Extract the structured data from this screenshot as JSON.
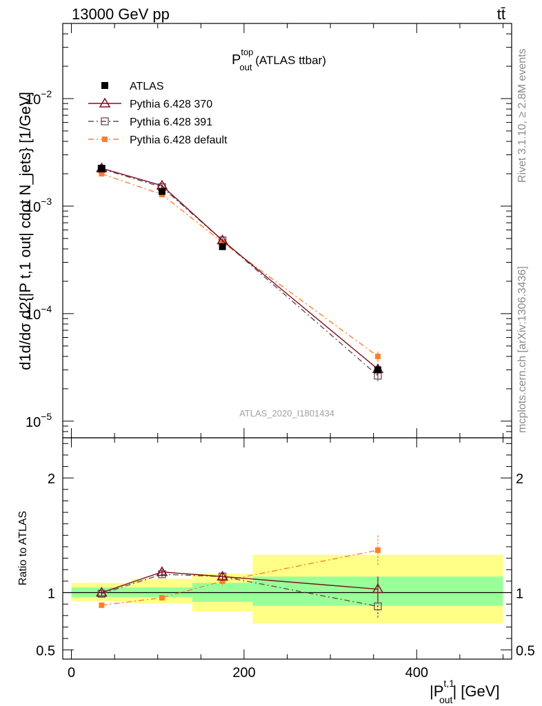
{
  "header": {
    "energy": "13000 GeV pp",
    "process": "tt̄"
  },
  "side_labels": {
    "rivet": "Rivet 3.1.10, ≥ 2.8M events",
    "mcplots": "mcplots.cern.ch [arXiv:1306.3436]"
  },
  "colors": {
    "atlas": "#000000",
    "p370": "#7a1020",
    "p391": "#6b4a5a",
    "pdefault": "#ff7f27",
    "band_outer": "#ffff88",
    "band_inner": "#99ff99"
  },
  "chart_data": [
    {
      "type": "scatter",
      "title_main": "P",
      "title_sup": "top",
      "title_sub": "out",
      "title_rest": " (ATLAS ttbar)",
      "analysis_id": "ATLAS_2020_I1801434",
      "ylabel": "d1d/dσ d2{|P t,1 out| cdot N_jets} [1/GeV]",
      "yscale": "log",
      "ylim": [
        7e-06,
        0.05
      ],
      "xlim": [
        -10,
        510
      ],
      "x_ticks": [
        0,
        200,
        400
      ],
      "y_ticks": [
        {
          "value": 0.01,
          "label": "10",
          "exp": "−2"
        },
        {
          "value": 0.001,
          "label": "10",
          "exp": "−3"
        },
        {
          "value": 0.0001,
          "label": "10",
          "exp": "−4"
        },
        {
          "value": 1e-05,
          "label": "10",
          "exp": "−5"
        }
      ],
      "legend_position": "top-left",
      "series": [
        {
          "name": "ATLAS",
          "marker": "filled-square",
          "x": [
            35,
            105,
            175,
            355
          ],
          "y": [
            0.00225,
            0.00137,
            0.00042,
            3e-05
          ],
          "yerr": [
            8e-05,
            5e-05,
            2e-05,
            2.5e-06
          ]
        },
        {
          "name": "Pythia 6.428 370",
          "marker": "open-triangle",
          "line": "solid",
          "x": [
            35,
            105,
            175,
            355
          ],
          "y": [
            0.00225,
            0.00155,
            0.00048,
            3.05e-05
          ],
          "yerr": [
            6e-05,
            5e-05,
            2e-05,
            3.5e-06
          ]
        },
        {
          "name": "Pythia 6.428 391",
          "marker": "open-square",
          "line": "dashdot",
          "x": [
            35,
            105,
            175,
            355
          ],
          "y": [
            0.00222,
            0.0015,
            0.00048,
            2.65e-05
          ],
          "yerr": [
            6e-05,
            5e-05,
            2e-05,
            3e-06
          ]
        },
        {
          "name": "Pythia 6.428 default",
          "marker": "filled-small-square",
          "line": "dashdot",
          "x": [
            35,
            105,
            175,
            355
          ],
          "y": [
            0.002,
            0.00128,
            0.00046,
            4e-05
          ],
          "yerr": [
            6e-05,
            4e-05,
            2e-05,
            4.5e-06
          ]
        }
      ]
    },
    {
      "type": "scatter",
      "ylabel": "Ratio to ATLAS",
      "xlabel": "|P t,1 out| [GeV]",
      "xlabel_main": "|P",
      "xlabel_sup": "t,1",
      "xlabel_sub": "out",
      "xlabel_rest": "| [GeV]",
      "ylim": [
        0.42,
        2.35
      ],
      "xlim": [
        -10,
        510
      ],
      "x_ticks": [
        0,
        200,
        400
      ],
      "y_ticks": [
        0.5,
        1,
        2
      ],
      "y_tick_labels": [
        "0.5",
        "1",
        "2"
      ],
      "bands": [
        {
          "x0": 0,
          "x1": 70,
          "inner": [
            0.96,
            1.045
          ],
          "outer": [
            0.925,
            1.085
          ]
        },
        {
          "x0": 70,
          "x1": 140,
          "inner": [
            0.96,
            1.045
          ],
          "outer": [
            0.905,
            1.12
          ]
        },
        {
          "x0": 140,
          "x1": 210,
          "inner": [
            0.92,
            1.085
          ],
          "outer": [
            0.835,
            1.165
          ]
        },
        {
          "x0": 210,
          "x1": 500,
          "inner": [
            0.885,
            1.14
          ],
          "outer": [
            0.73,
            1.33
          ]
        }
      ],
      "series": [
        {
          "name": "Pythia 6.428 370",
          "x": [
            35,
            105,
            175,
            355
          ],
          "y": [
            1.0,
            1.18,
            1.14,
            1.03
          ],
          "yerr": [
            0.02,
            0.025,
            0.035,
            0.11
          ]
        },
        {
          "name": "Pythia 6.428 391",
          "x": [
            35,
            105,
            175,
            355
          ],
          "y": [
            0.99,
            1.16,
            1.14,
            0.88
          ],
          "yerr": [
            0.02,
            0.025,
            0.035,
            0.1
          ]
        },
        {
          "name": "Pythia 6.428 default",
          "x": [
            35,
            105,
            175,
            355
          ],
          "y": [
            0.89,
            0.955,
            1.1,
            1.37
          ],
          "yerr": [
            0.02,
            0.025,
            0.035,
            0.13
          ]
        }
      ]
    }
  ]
}
